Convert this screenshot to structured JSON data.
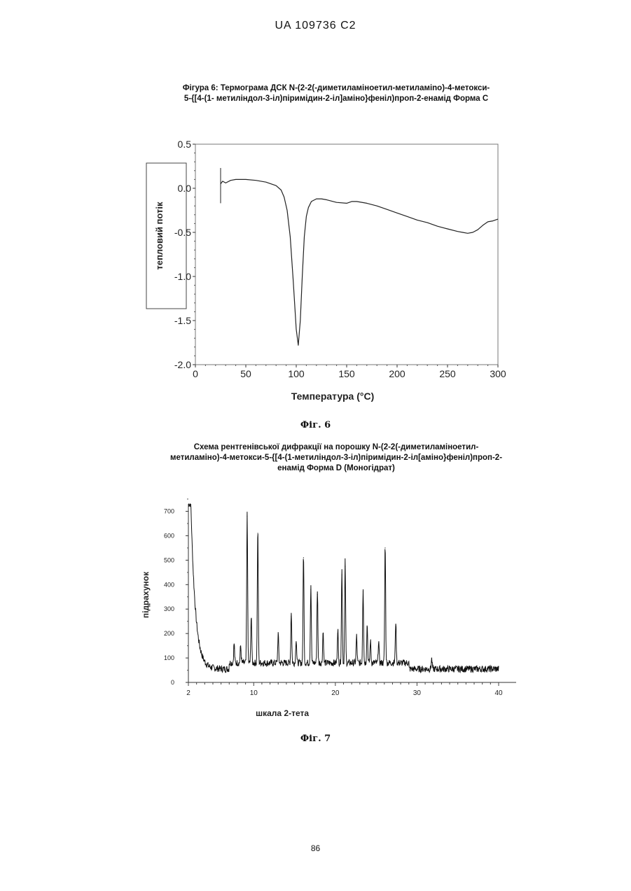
{
  "header": {
    "doc_id": "UA   109736   C2"
  },
  "page_number": "86",
  "figure6": {
    "title_line1": "Фігура 6: Термограма ДСК N-(2-2(-диметиламіноетил-метиламіno)-4-метокси-",
    "title_line2": "5-{[4-(1- метиліндол-3-іл)піримідин-2-іл]аміно}феніл)проп-2-енамід Форма С",
    "caption": "Фіг. 6"
  },
  "figure7": {
    "title_line1": "Схема рентгенівської дифракції на порошку N-(2-2(-диметиламіноетил-",
    "title_line2": "метиламіно)-4-метокси-5-{[4-(1-метиліндол-3-іл)піримідин-2-іл[аміно}феніл)проп-2-",
    "title_line3": "енамід Форма D (Моногідрат)",
    "caption": "Фіг. 7"
  },
  "chart_data": [
    {
      "type": "line",
      "xlabel": "Температура (°C)",
      "ylabel": "тепловий потік",
      "xlim": [
        0,
        300
      ],
      "ylim": [
        -2.0,
        0.5
      ],
      "x_ticks": [
        0,
        50,
        100,
        150,
        200,
        250,
        300
      ],
      "x_tick_labels": [
        "0",
        "50",
        "100",
        "150",
        "200",
        "250",
        "300"
      ],
      "y_ticks": [
        0.5,
        0.0,
        -0.5,
        -1.0,
        -1.5,
        -2.0
      ],
      "y_tick_labels": [
        "0.5",
        "0.0",
        "-0.5",
        "-1.0",
        "-1.5",
        "-2.0"
      ],
      "spike": {
        "x": 25,
        "y_top": 0.23,
        "y_bottom": -0.17
      },
      "x": [
        25,
        27,
        30,
        35,
        40,
        50,
        60,
        70,
        80,
        85,
        88,
        91,
        94,
        97,
        100,
        102,
        104,
        106,
        108,
        110,
        112,
        115,
        120,
        125,
        130,
        140,
        150,
        155,
        160,
        170,
        180,
        190,
        200,
        210,
        220,
        230,
        240,
        250,
        260,
        265,
        270,
        275,
        280,
        285,
        290,
        295,
        300
      ],
      "y": [
        0.05,
        0.08,
        0.06,
        0.09,
        0.1,
        0.1,
        0.09,
        0.07,
        0.03,
        -0.02,
        -0.1,
        -0.25,
        -0.55,
        -1.05,
        -1.6,
        -1.78,
        -1.5,
        -1.0,
        -0.55,
        -0.32,
        -0.22,
        -0.15,
        -0.12,
        -0.12,
        -0.13,
        -0.16,
        -0.17,
        -0.15,
        -0.15,
        -0.17,
        -0.2,
        -0.24,
        -0.28,
        -0.32,
        -0.36,
        -0.39,
        -0.43,
        -0.46,
        -0.49,
        -0.5,
        -0.51,
        -0.5,
        -0.47,
        -0.42,
        -0.38,
        -0.37,
        -0.35
      ]
    },
    {
      "type": "line",
      "xlabel": "шкала 2-тета",
      "ylabel": "підрахунок",
      "xlim": [
        2,
        40
      ],
      "ylim": [
        0,
        730
      ],
      "x_ticks": [
        2,
        10,
        20,
        30,
        40
      ],
      "x_tick_labels": [
        "2",
        "10",
        "20",
        "30",
        "40"
      ],
      "y_ticks": [
        0,
        100,
        200,
        300,
        400,
        500,
        600,
        700
      ],
      "y_tick_labels": [
        "0",
        "100",
        "200",
        "300",
        "400",
        "500",
        "600",
        "700"
      ],
      "peaks": [
        {
          "x": 7.6,
          "y": 140
        },
        {
          "x": 8.4,
          "y": 130
        },
        {
          "x": 9.2,
          "y": 680
        },
        {
          "x": 9.7,
          "y": 260
        },
        {
          "x": 10.5,
          "y": 610
        },
        {
          "x": 13.0,
          "y": 180
        },
        {
          "x": 14.6,
          "y": 270
        },
        {
          "x": 15.2,
          "y": 160
        },
        {
          "x": 16.1,
          "y": 510
        },
        {
          "x": 17.0,
          "y": 380
        },
        {
          "x": 17.8,
          "y": 360
        },
        {
          "x": 18.5,
          "y": 190
        },
        {
          "x": 20.3,
          "y": 200
        },
        {
          "x": 20.8,
          "y": 440
        },
        {
          "x": 21.2,
          "y": 475
        },
        {
          "x": 22.6,
          "y": 170
        },
        {
          "x": 23.4,
          "y": 370
        },
        {
          "x": 23.9,
          "y": 220
        },
        {
          "x": 24.3,
          "y": 150
        },
        {
          "x": 25.3,
          "y": 150
        },
        {
          "x": 26.1,
          "y": 550
        },
        {
          "x": 27.4,
          "y": 230
        },
        {
          "x": 31.8,
          "y": 100
        }
      ]
    }
  ]
}
